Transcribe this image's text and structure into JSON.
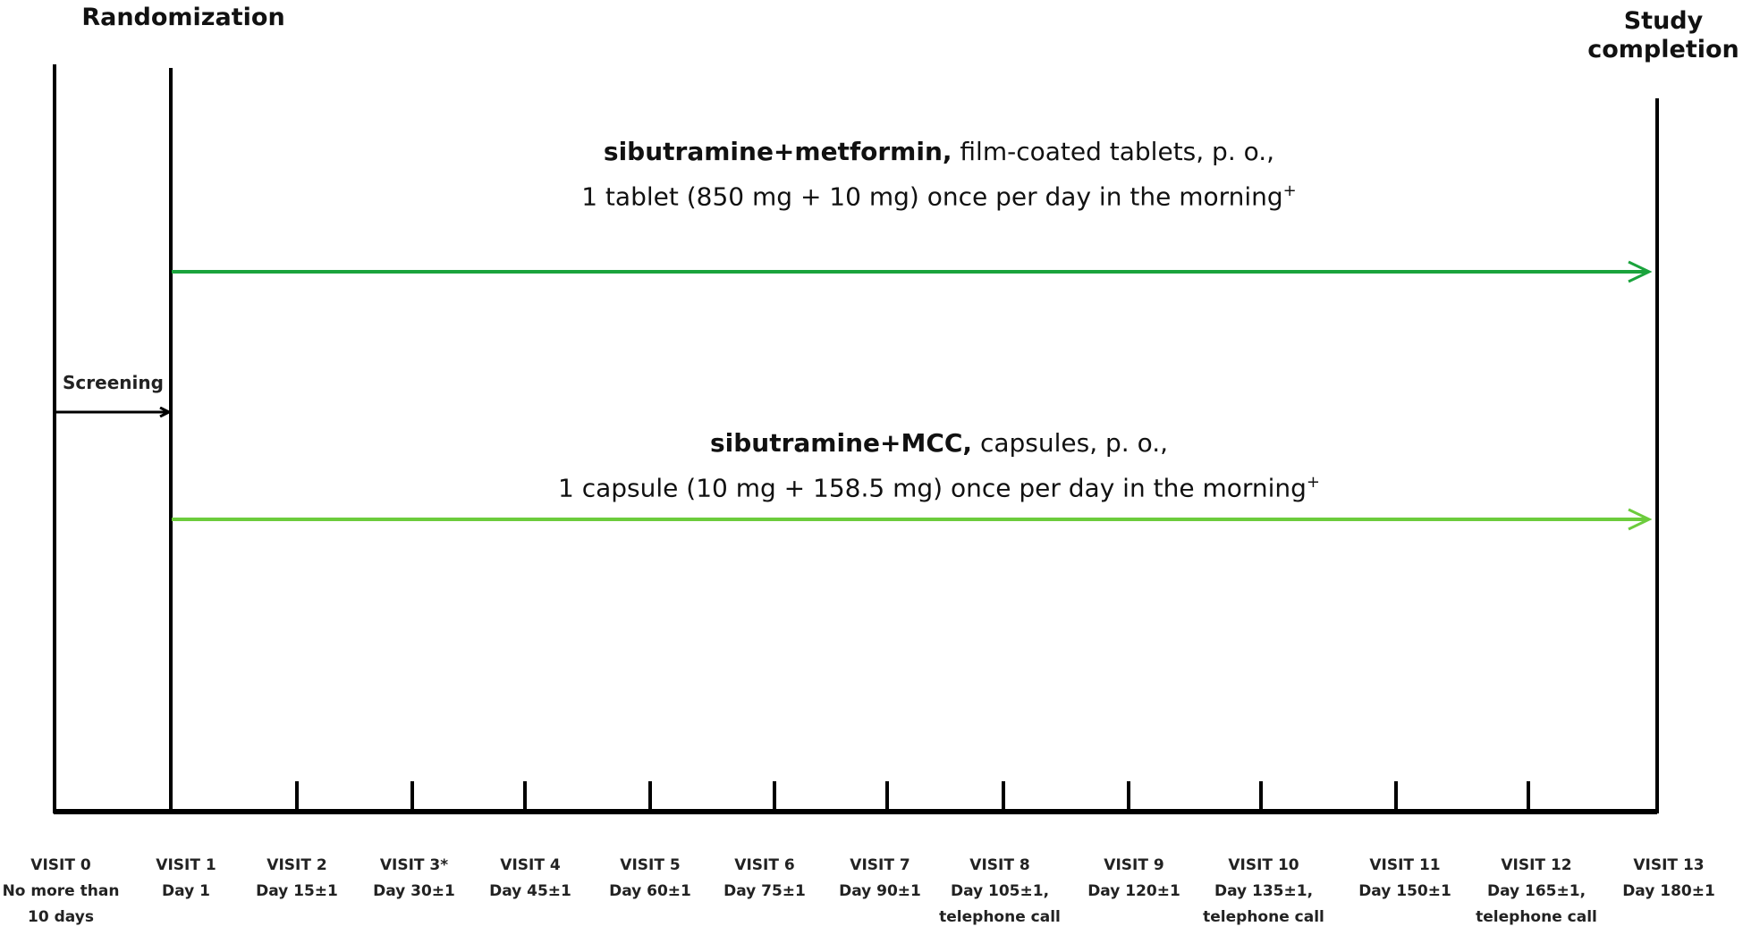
{
  "headers": {
    "randomization": "Randomization",
    "completion_line1": "Study",
    "completion_line2": "completion"
  },
  "screening_label": "Screening",
  "arms": [
    {
      "drug": "sibutramine+metformin,",
      "form": " film-coated tablets, p. o.,",
      "dose": "1 tablet (850 mg + 10 mg) once per day in the morning",
      "mark": "+",
      "color": "#1aa33c"
    },
    {
      "drug": "sibutramine+MCC,",
      "form": " capsules, p. o.,",
      "dose": "1 capsule (10 mg + 158.5 mg) once per day in the morning",
      "mark": "+",
      "color": "#6ccc3c"
    }
  ],
  "visits": [
    {
      "name": "VISIT 0",
      "lines": [
        "No more than",
        "10 days"
      ]
    },
    {
      "name": "VISIT 1",
      "lines": [
        "Day 1"
      ]
    },
    {
      "name": "VISIT 2",
      "lines": [
        "Day 15±1"
      ]
    },
    {
      "name": "VISIT 3*",
      "lines": [
        "Day 30±1"
      ]
    },
    {
      "name": "VISIT 4",
      "lines": [
        "Day 45±1"
      ]
    },
    {
      "name": "VISIT 5",
      "lines": [
        "Day 60±1"
      ]
    },
    {
      "name": "VISIT 6",
      "lines": [
        "Day 75±1"
      ]
    },
    {
      "name": "VISIT 7",
      "lines": [
        "Day 90±1"
      ]
    },
    {
      "name": "VISIT 8",
      "lines": [
        "Day 105±1,",
        "telephone call"
      ]
    },
    {
      "name": "VISIT 9",
      "lines": [
        "Day 120±1"
      ]
    },
    {
      "name": "VISIT 10",
      "lines": [
        "Day 135±1,",
        "telephone call"
      ]
    },
    {
      "name": "VISIT 11",
      "lines": [
        "Day 150±1"
      ]
    },
    {
      "name": "VISIT 12",
      "lines": [
        "Day 165±1,",
        "telephone call"
      ]
    },
    {
      "name": "VISIT 13",
      "lines": [
        "Day 180±1"
      ]
    }
  ]
}
